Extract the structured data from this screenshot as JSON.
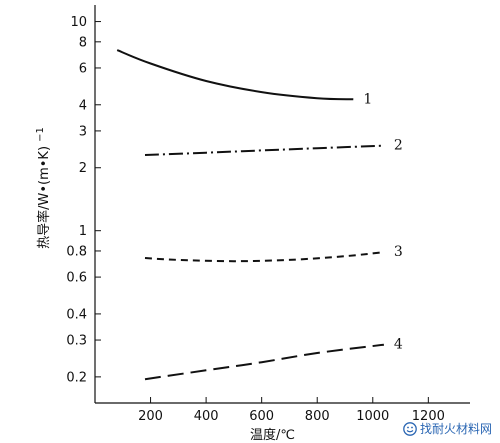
{
  "chart_data": {
    "type": "line",
    "title": "",
    "xlabel": "温度/℃",
    "ylabel": "热导率/W•(m•K)",
    "ylabel_sup": "−1",
    "yscale": "log",
    "xlim": [
      0,
      1350
    ],
    "ylim": [
      0.15,
      12
    ],
    "x_ticks": [
      200,
      400,
      600,
      800,
      1000,
      1200
    ],
    "x_tick_labels": [
      "200",
      "400",
      "600",
      "800",
      "1000",
      "1200"
    ],
    "y_ticks": [
      0.2,
      0.3,
      0.4,
      0.6,
      0.8,
      1,
      2,
      3,
      4,
      6,
      8,
      10
    ],
    "y_tick_labels": [
      "0.2",
      "0.3",
      "0.4",
      "0.6",
      "0.8",
      "1",
      "2",
      "3",
      "4",
      "6",
      "8",
      "10"
    ],
    "grid": false,
    "legend": "none",
    "series": [
      {
        "label": "1",
        "style": "solid",
        "x": [
          80,
          200,
          400,
          600,
          800,
          930
        ],
        "y": [
          7.3,
          6.3,
          5.2,
          4.6,
          4.3,
          4.25
        ]
      },
      {
        "label": "2",
        "style": "dash-dot",
        "x": [
          180,
          400,
          600,
          800,
          1040
        ],
        "y": [
          2.3,
          2.36,
          2.42,
          2.48,
          2.55
        ]
      },
      {
        "label": "3",
        "style": "dashed",
        "x": [
          180,
          300,
          500,
          700,
          900,
          1040
        ],
        "y": [
          0.74,
          0.725,
          0.715,
          0.725,
          0.755,
          0.79
        ]
      },
      {
        "label": "4",
        "style": "long-dash",
        "x": [
          180,
          400,
          600,
          800,
          1040
        ],
        "y": [
          0.195,
          0.215,
          0.235,
          0.26,
          0.285
        ]
      }
    ]
  },
  "watermark": {
    "text": "找耐火材料网",
    "color": "#2a66b3"
  }
}
